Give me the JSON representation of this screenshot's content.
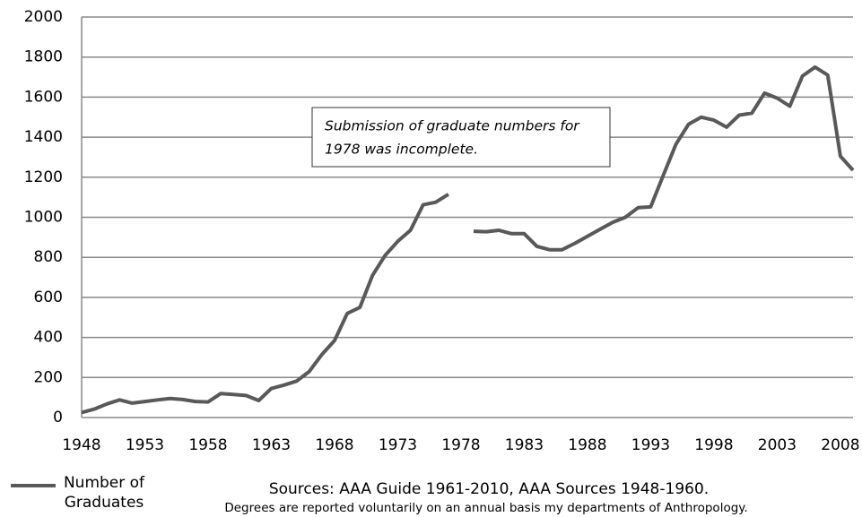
{
  "chart_data": {
    "type": "line",
    "x": [
      1948,
      1949,
      1950,
      1951,
      1952,
      1953,
      1954,
      1955,
      1956,
      1957,
      1958,
      1959,
      1960,
      1961,
      1962,
      1963,
      1964,
      1965,
      1966,
      1967,
      1968,
      1969,
      1970,
      1971,
      1972,
      1973,
      1974,
      1975,
      1976,
      1977,
      1978,
      1979,
      1980,
      1981,
      1982,
      1983,
      1984,
      1985,
      1986,
      1987,
      1988,
      1989,
      1990,
      1991,
      1992,
      1993,
      1994,
      1995,
      1996,
      1997,
      1998,
      1999,
      2000,
      2001,
      2002,
      2003,
      2004,
      2005,
      2006,
      2007,
      2008,
      2009
    ],
    "series": [
      {
        "name": "Number of Graduates",
        "color": "#595959",
        "values": [
          25,
          42,
          68,
          88,
          72,
          80,
          88,
          95,
          90,
          80,
          78,
          120,
          115,
          110,
          85,
          145,
          162,
          182,
          230,
          315,
          385,
          520,
          550,
          710,
          810,
          880,
          935,
          1062,
          1075,
          1115,
          null,
          930,
          928,
          935,
          918,
          918,
          855,
          838,
          838,
          870,
          905,
          940,
          975,
          1000,
          1048,
          1052,
          1210,
          1365,
          1465,
          1500,
          1485,
          1450,
          1510,
          1520,
          1620,
          1595,
          1555,
          1705,
          1750,
          1710,
          1305,
          1235
        ]
      }
    ],
    "xlim": [
      1948,
      2009
    ],
    "xticks": [
      1948,
      1953,
      1958,
      1963,
      1968,
      1973,
      1978,
      1983,
      1988,
      1993,
      1998,
      2003,
      2008
    ],
    "ylim": [
      0,
      2000
    ],
    "yticks": [
      0,
      200,
      400,
      600,
      800,
      1000,
      1200,
      1400,
      1600,
      1800,
      2000
    ],
    "grid": true,
    "annotation": [
      "Submission of graduate numbers for",
      "1978 was incomplete."
    ],
    "sources": [
      "Sources: AAA Guide 1961-2010, AAA Sources 1948-1960.",
      "Degrees are reported voluntarily on an annual basis my departments of Anthropology."
    ]
  }
}
